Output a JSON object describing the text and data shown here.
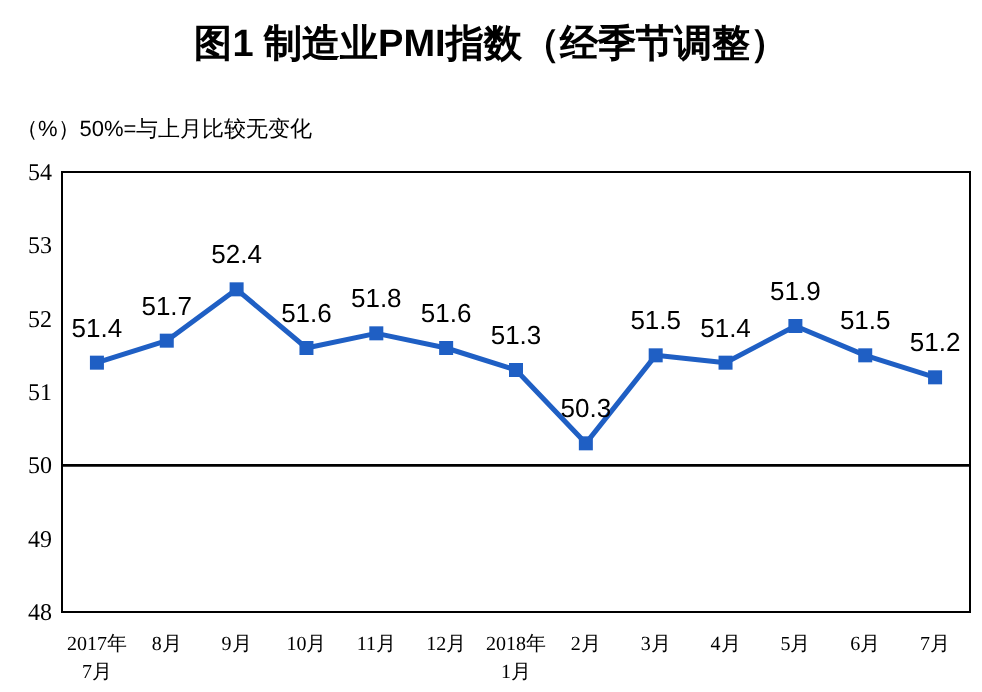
{
  "chart_data": {
    "type": "line",
    "title": "图1  制造业PMI指数（经季节调整）",
    "ylabel": "（%）50%=与上月比较无变化",
    "categories": [
      "2017年\n7月",
      "8月",
      "9月",
      "10月",
      "11月",
      "12月",
      "2018年\n1月",
      "2月",
      "3月",
      "4月",
      "5月",
      "6月",
      "7月"
    ],
    "series": [
      {
        "color": "#1f5fc4",
        "values": [
          51.4,
          51.7,
          52.4,
          51.6,
          51.8,
          51.6,
          51.3,
          50.3,
          51.5,
          51.4,
          51.9,
          51.5,
          51.2
        ]
      }
    ],
    "ylim": [
      48,
      54
    ],
    "yticks": [
      48,
      49,
      50,
      51,
      52,
      53,
      54
    ],
    "ref_lines": [
      {
        "axis": "y",
        "value": 50,
        "color": "#000000"
      }
    ],
    "data_labels": true,
    "marker": "square",
    "line_style": "solid"
  }
}
